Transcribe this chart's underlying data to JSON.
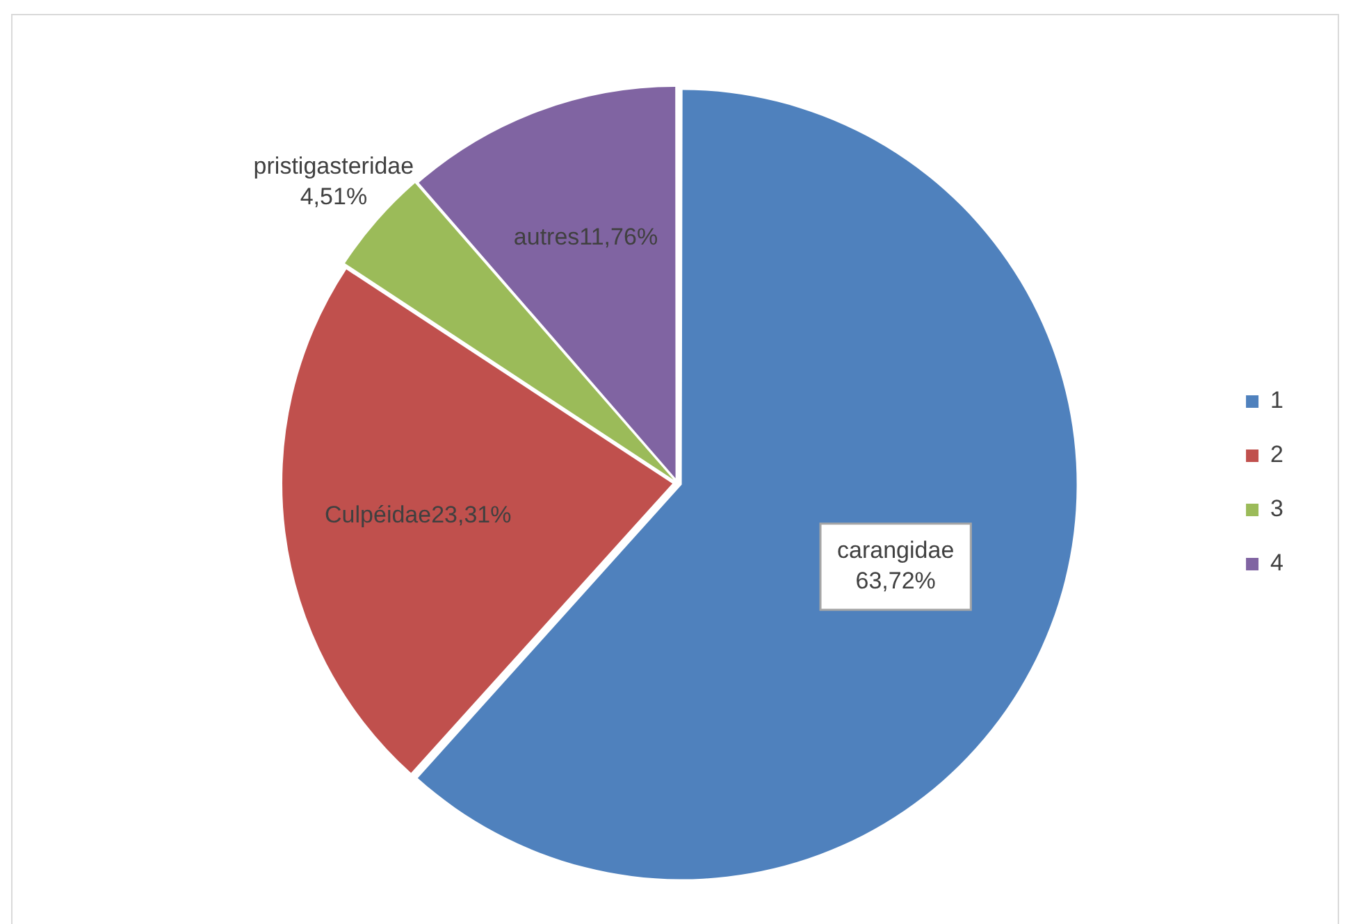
{
  "chart_data": {
    "type": "pie",
    "categories": [
      "1",
      "2",
      "3",
      "4"
    ],
    "values": [
      63.72,
      23.31,
      4.51,
      11.76
    ],
    "colors": [
      "#4f81bd",
      "#c0504d",
      "#9bbb59",
      "#8064a2"
    ],
    "value_labels": [
      "carangidae\n63,72%",
      "Culpéidae23,31%",
      "pristigasteridae\n4,51%",
      "autres11,76%"
    ],
    "legend": "right"
  }
}
